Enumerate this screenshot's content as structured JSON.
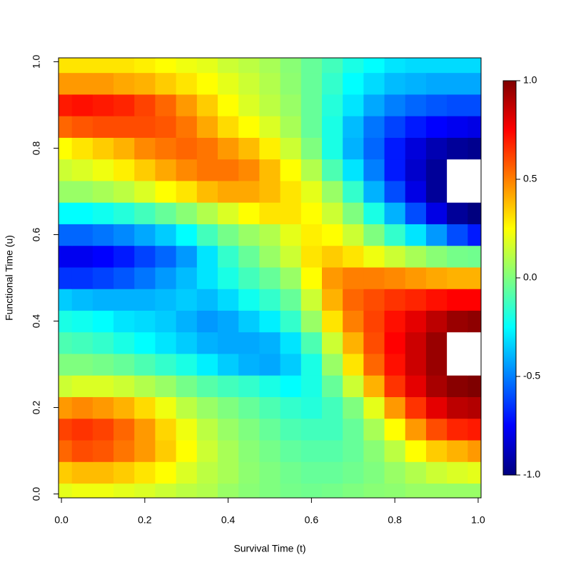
{
  "chart_data": {
    "type": "heatmap",
    "xlabel": "Survival Time (t)",
    "ylabel": "Functional Time (u)",
    "x": [
      0,
      0.05,
      0.1,
      0.15,
      0.2,
      0.25,
      0.3,
      0.35,
      0.4,
      0.45,
      0.5,
      0.55,
      0.6,
      0.65,
      0.7,
      0.75,
      0.8,
      0.85,
      0.9,
      0.95,
      1
    ],
    "y": [
      0,
      0.05,
      0.1,
      0.15,
      0.2,
      0.25,
      0.3,
      0.35,
      0.4,
      0.45,
      0.5,
      0.55,
      0.6,
      0.65,
      0.7,
      0.75,
      0.8,
      0.85,
      0.9,
      0.95,
      1
    ],
    "z": [
      [
        0.2,
        0.22,
        0.22,
        0.2,
        0.18,
        0.15,
        0.12,
        0.1,
        0.05,
        0.02,
        0,
        -0.02,
        -0.03,
        -0.02,
        0,
        0.02,
        0.03,
        0.05,
        0.05,
        0.05,
        0.05
      ],
      [
        0.35,
        0.38,
        0.38,
        0.35,
        0.3,
        0.25,
        0.18,
        0.12,
        0.08,
        0.03,
        0,
        -0.03,
        -0.05,
        -0.05,
        -0.03,
        0,
        0.05,
        0.1,
        0.15,
        0.18,
        0.2
      ],
      [
        0.55,
        0.6,
        0.58,
        0.52,
        0.45,
        0.35,
        0.25,
        0.15,
        0.08,
        0.02,
        -0.02,
        -0.06,
        -0.08,
        -0.08,
        -0.05,
        0.02,
        0.12,
        0.25,
        0.35,
        0.4,
        0.45
      ],
      [
        0.62,
        0.65,
        0.62,
        0.55,
        0.45,
        0.33,
        0.22,
        0.12,
        0.05,
        0,
        -0.05,
        -0.1,
        -0.12,
        -0.12,
        -0.05,
        0.08,
        0.25,
        0.45,
        0.6,
        0.68,
        0.7
      ],
      [
        0.45,
        0.48,
        0.45,
        0.4,
        0.32,
        0.22,
        0.12,
        0.05,
        0,
        -0.05,
        -0.1,
        -0.15,
        -0.18,
        -0.12,
        0,
        0.2,
        0.45,
        0.65,
        0.8,
        0.88,
        0.9
      ],
      [
        0.15,
        0.18,
        0.18,
        0.15,
        0.1,
        0.05,
        -0.02,
        -0.08,
        -0.12,
        -0.15,
        -0.2,
        -0.25,
        -0.2,
        -0.05,
        0.15,
        0.4,
        0.65,
        0.8,
        0.92,
        0.98,
        1.0
      ],
      [
        0,
        0,
        -0.02,
        -0.05,
        -0.1,
        -0.15,
        -0.2,
        -0.28,
        -0.35,
        -0.4,
        -0.42,
        -0.35,
        -0.2,
        0.05,
        0.3,
        0.55,
        0.72,
        0.85,
        0.95,
        1.03,
        1.05
      ],
      [
        -0.1,
        -0.12,
        -0.15,
        -0.2,
        -0.25,
        -0.3,
        -0.35,
        -0.4,
        -0.42,
        -0.42,
        -0.4,
        -0.3,
        -0.1,
        0.15,
        0.4,
        0.6,
        0.75,
        0.85,
        0.95,
        1.03,
        1.05
      ],
      [
        -0.2,
        -0.22,
        -0.25,
        -0.3,
        -0.32,
        -0.35,
        -0.4,
        -0.45,
        -0.42,
        -0.35,
        -0.28,
        -0.15,
        0.05,
        0.3,
        0.5,
        0.62,
        0.72,
        0.8,
        0.88,
        0.95,
        0.97
      ],
      [
        -0.35,
        -0.38,
        -0.4,
        -0.4,
        -0.4,
        -0.38,
        -0.35,
        -0.38,
        -0.32,
        -0.22,
        -0.15,
        -0.05,
        0.15,
        0.4,
        0.55,
        0.6,
        0.65,
        0.68,
        0.72,
        0.75,
        0.75
      ],
      [
        -0.65,
        -0.65,
        -0.62,
        -0.58,
        -0.52,
        -0.45,
        -0.38,
        -0.3,
        -0.2,
        -0.12,
        -0.05,
        0.05,
        0.25,
        0.45,
        0.5,
        0.5,
        0.48,
        0.45,
        0.42,
        0.4,
        0.4
      ],
      [
        -0.78,
        -0.78,
        -0.75,
        -0.7,
        -0.62,
        -0.55,
        -0.45,
        -0.3,
        -0.15,
        -0.05,
        0.05,
        0.15,
        0.3,
        0.35,
        0.3,
        0.22,
        0.15,
        0.08,
        0.02,
        -0.02,
        -0.03
      ],
      [
        -0.55,
        -0.55,
        -0.52,
        -0.48,
        -0.42,
        -0.35,
        -0.25,
        -0.12,
        -0.02,
        0.05,
        0.1,
        0.2,
        0.28,
        0.25,
        0.15,
        0,
        -0.15,
        -0.3,
        -0.45,
        -0.6,
        -0.7
      ],
      [
        -0.25,
        -0.25,
        -0.22,
        -0.18,
        -0.12,
        -0.05,
        0.02,
        0.1,
        0.18,
        0.25,
        0.3,
        0.3,
        0.25,
        0.15,
        0,
        -0.2,
        -0.4,
        -0.6,
        -0.8,
        -0.95,
        -1.0
      ],
      [
        0.05,
        0.05,
        0.08,
        0.12,
        0.18,
        0.25,
        0.3,
        0.38,
        0.42,
        0.42,
        0.38,
        0.3,
        0.2,
        0.05,
        -0.15,
        -0.4,
        -0.6,
        -0.8,
        -0.95,
        -1.05,
        -1.05
      ],
      [
        0.15,
        0.18,
        0.22,
        0.28,
        0.35,
        0.42,
        0.48,
        0.52,
        0.52,
        0.48,
        0.38,
        0.25,
        0.1,
        -0.1,
        -0.3,
        -0.5,
        -0.7,
        -0.85,
        -0.95,
        -1.03,
        -1.05
      ],
      [
        0.25,
        0.3,
        0.35,
        0.4,
        0.48,
        0.52,
        0.55,
        0.52,
        0.45,
        0.38,
        0.28,
        0.15,
        0,
        -0.2,
        -0.4,
        -0.55,
        -0.7,
        -0.82,
        -0.9,
        -0.95,
        -0.97
      ],
      [
        0.55,
        0.58,
        0.6,
        0.6,
        0.6,
        0.58,
        0.52,
        0.42,
        0.32,
        0.25,
        0.18,
        0.08,
        -0.05,
        -0.2,
        -0.38,
        -0.52,
        -0.62,
        -0.7,
        -0.75,
        -0.78,
        -0.8
      ],
      [
        0.7,
        0.72,
        0.7,
        0.68,
        0.62,
        0.55,
        0.45,
        0.35,
        0.25,
        0.18,
        0.12,
        0.05,
        -0.05,
        -0.18,
        -0.3,
        -0.42,
        -0.5,
        -0.55,
        -0.58,
        -0.6,
        -0.6
      ],
      [
        0.45,
        0.45,
        0.45,
        0.42,
        0.4,
        0.35,
        0.3,
        0.25,
        0.2,
        0.15,
        0.1,
        0.03,
        -0.05,
        -0.15,
        -0.25,
        -0.32,
        -0.38,
        -0.4,
        -0.42,
        -0.42,
        -0.42
      ],
      [
        0.3,
        0.3,
        0.3,
        0.3,
        0.28,
        0.25,
        0.22,
        0.2,
        0.15,
        0.12,
        0.08,
        0.02,
        -0.05,
        -0.12,
        -0.2,
        -0.25,
        -0.3,
        -0.32,
        -0.32,
        -0.32,
        -0.32
      ]
    ],
    "xlim": [
      -0.007,
      1.007
    ],
    "ylim": [
      -0.009,
      1.009
    ],
    "xticks": [
      {
        "value": 0,
        "label": "0.0"
      },
      0.2,
      0.4,
      0.6,
      0.8,
      {
        "value": 1,
        "label": "1.0"
      }
    ],
    "yticks": [
      {
        "value": 0,
        "label": "0.0"
      },
      0.2,
      0.4,
      0.6,
      0.8,
      {
        "value": 1,
        "label": "1.0"
      }
    ],
    "zlim": [
      -1,
      1
    ],
    "zticks": [
      {
        "value": 1,
        "label": "1.0"
      },
      0.5,
      {
        "value": 0,
        "label": "0.0"
      },
      -0.5,
      {
        "value": -1,
        "label": "-1.0"
      }
    ],
    "colors": [
      "#00007F",
      "#0000FF",
      "#007FFF",
      "#00FFFF",
      "#7FFF7F",
      "#FFFF00",
      "#FF7F00",
      "#FF0000",
      "#7F0000"
    ]
  }
}
